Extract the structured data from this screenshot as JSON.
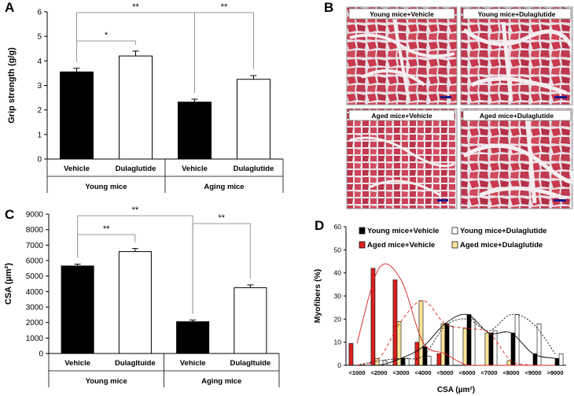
{
  "panels": {
    "a": "A",
    "b": "B",
    "c": "C",
    "d": "D"
  },
  "chart_data": [
    {
      "id": "A",
      "type": "bar",
      "ylabel": "Grip strength (g/g)",
      "ylim": [
        0,
        6
      ],
      "yticks": [
        "0",
        "1",
        "2",
        "3",
        "4",
        "5",
        "6"
      ],
      "categories": [
        "Vehicle",
        "Dulaglutide",
        "Vehicle",
        "Dulaglutide"
      ],
      "groups": [
        "Young mice",
        "Aging mice"
      ],
      "values": [
        3.55,
        4.2,
        2.32,
        3.25
      ],
      "errors": [
        0.15,
        0.2,
        0.12,
        0.15
      ],
      "fills": [
        "#000000",
        "#ffffff",
        "#000000",
        "#ffffff"
      ],
      "significance": [
        {
          "label": "*",
          "from": 0,
          "to": 1
        },
        {
          "label": "**",
          "from": 0,
          "to": 2
        },
        {
          "label": "**",
          "from": 2,
          "to": 3
        }
      ]
    },
    {
      "id": "C",
      "type": "bar",
      "ylabel": "CSA (µm²)",
      "ylim": [
        0,
        9000
      ],
      "yticks": [
        "0",
        "1000",
        "2000",
        "3000",
        "4000",
        "5000",
        "6000",
        "7000",
        "8000",
        "9000"
      ],
      "categories": [
        "Vehicle",
        "Dulagltuide",
        "Vehicle",
        "Dulagltuide"
      ],
      "groups": [
        "Young mice",
        "Aging mice"
      ],
      "values": [
        5650,
        6580,
        2050,
        4250
      ],
      "errors": [
        120,
        200,
        110,
        180
      ],
      "fills": [
        "#000000",
        "#ffffff",
        "#000000",
        "#ffffff"
      ],
      "significance": [
        {
          "label": "**",
          "from": 0,
          "to": 1
        },
        {
          "label": "**",
          "from": 0,
          "to": 2
        },
        {
          "label": "**",
          "from": 2,
          "to": 3
        }
      ]
    },
    {
      "id": "D",
      "type": "bar",
      "ylabel": "Myofibers (%)",
      "xlabel": "CSA (µm²)",
      "ylim": [
        0,
        60
      ],
      "yticks": [
        "0",
        "10",
        "20",
        "30",
        "40",
        "50",
        "60"
      ],
      "categories": [
        "<1000",
        "<2000",
        "<3000",
        "<4000",
        "<5000",
        "<6000",
        "<7000",
        "<8000",
        "<9000",
        ">9000"
      ],
      "series": [
        {
          "name": "Young mice+Vehicle",
          "color": "#000000",
          "values": [
            0,
            0,
            3,
            8,
            18,
            22,
            14,
            14,
            5,
            3
          ]
        },
        {
          "name": "Young mice+Dulaglutide",
          "color": "#ffffff",
          "values": [
            0,
            2,
            3,
            4,
            17,
            20,
            15,
            22,
            18,
            5
          ]
        },
        {
          "name": "Aged mice+Vehicle",
          "color": "#d9211e",
          "values": [
            9.5,
            42,
            37,
            10,
            5,
            0,
            0,
            0,
            0,
            0
          ]
        },
        {
          "name": "Aged mice+Dulaglutide",
          "color": "#fde49a",
          "values": [
            0,
            3,
            19,
            28,
            18,
            16,
            14,
            2,
            0,
            0
          ]
        }
      ]
    }
  ],
  "micrographs": [
    {
      "label": "Young mice+Vehicle"
    },
    {
      "label": "Young mice+Dulaglutide"
    },
    {
      "label": "Aged mice+Vehicle"
    },
    {
      "label": "Aged mice+Dulaglutide"
    }
  ]
}
